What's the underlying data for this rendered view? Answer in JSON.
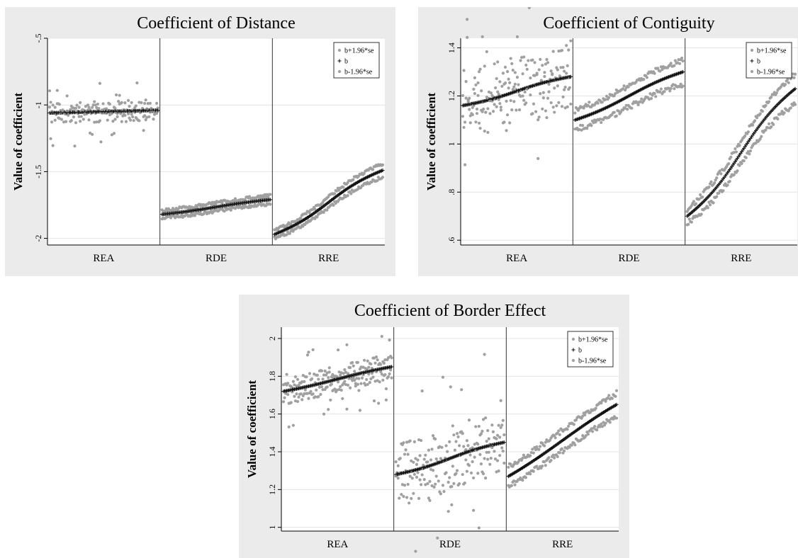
{
  "legend": [
    {
      "label": "b+1.96*se",
      "marker": "dot",
      "color": "#a0a0a0"
    },
    {
      "label": "b",
      "marker": "plus",
      "color": "#111111"
    },
    {
      "label": "b-1.96*se",
      "marker": "dot",
      "color": "#a0a0a0"
    }
  ],
  "chart_data": [
    {
      "type": "scatter",
      "title": "Coefficient of Distance",
      "ylabel": "Value of coefficient",
      "categories": [
        "REA",
        "RDE",
        "RRE"
      ],
      "yticks": [
        -2,
        -1.5,
        -1,
        -0.5
      ],
      "ytick_labels": [
        "-2",
        "-1.5",
        "-1",
        "-.5"
      ],
      "ylim": [
        -2.05,
        -0.5
      ],
      "grid": true,
      "legend_position": "top-right",
      "points_per_group": 100,
      "groups": [
        {
          "name": "REA",
          "b": [
            -1.06,
            -1.04
          ],
          "band": [
            0.03,
            0.03
          ],
          "noise": 0.05,
          "outliers": 8
        },
        {
          "name": "RDE",
          "b": [
            -1.82,
            -1.71
          ],
          "band": [
            0.03,
            0.03
          ],
          "noise": 0.012,
          "outliers": 0,
          "warp": 2.5
        },
        {
          "name": "RRE",
          "b": [
            -1.97,
            -1.49
          ],
          "band": [
            0.03,
            0.05
          ],
          "noise": 0.012,
          "outliers": 0,
          "warp": 3
        }
      ]
    },
    {
      "type": "scatter",
      "title": "Coefficient of Contiguity",
      "ylabel": "Value of coefficient",
      "categories": [
        "REA",
        "RDE",
        "RRE"
      ],
      "yticks": [
        0.6,
        0.8,
        1,
        1.2,
        1.4
      ],
      "ytick_labels": [
        ".6",
        ".8",
        "1",
        "1.2",
        "1.4"
      ],
      "ylim": [
        0.58,
        1.44
      ],
      "grid": true,
      "legend_position": "top-right",
      "points_per_group": 100,
      "groups": [
        {
          "name": "REA",
          "b": [
            1.16,
            1.28
          ],
          "band": [
            0.05,
            0.05
          ],
          "noise": 0.1,
          "outliers": 6,
          "warp": 3
        },
        {
          "name": "RDE",
          "b": [
            1.1,
            1.3
          ],
          "band": [
            0.04,
            0.05
          ],
          "noise": 0.012,
          "outliers": 0,
          "warp": 2.5
        },
        {
          "name": "RRE",
          "b": [
            0.7,
            1.23
          ],
          "band": [
            0.03,
            0.06
          ],
          "noise": 0.012,
          "outliers": 0,
          "warp": 3
        }
      ]
    },
    {
      "type": "scatter",
      "title": "Coefficient of Border Effect",
      "ylabel": "Value of coefficient",
      "categories": [
        "REA",
        "RDE",
        "RRE"
      ],
      "yticks": [
        1,
        1.2,
        1.4,
        1.6,
        1.8,
        2
      ],
      "ytick_labels": [
        "1",
        "1.2",
        "1.4",
        "1.6",
        "1.8",
        "2"
      ],
      "ylim": [
        0.98,
        2.06
      ],
      "grid": true,
      "legend_position": "top-right",
      "points_per_group": 100,
      "groups": [
        {
          "name": "REA",
          "b": [
            1.72,
            1.85
          ],
          "band": [
            0.04,
            0.04
          ],
          "noise": 0.03,
          "outliers": 8,
          "warp": 2
        },
        {
          "name": "RDE",
          "b": [
            1.28,
            1.45
          ],
          "band": [
            0.08,
            0.08
          ],
          "noise": 0.09,
          "outliers": 8,
          "warp": 3
        },
        {
          "name": "RRE",
          "b": [
            1.27,
            1.65
          ],
          "band": [
            0.05,
            0.06
          ],
          "noise": 0.015,
          "outliers": 0,
          "warp": 1.5
        }
      ]
    }
  ]
}
